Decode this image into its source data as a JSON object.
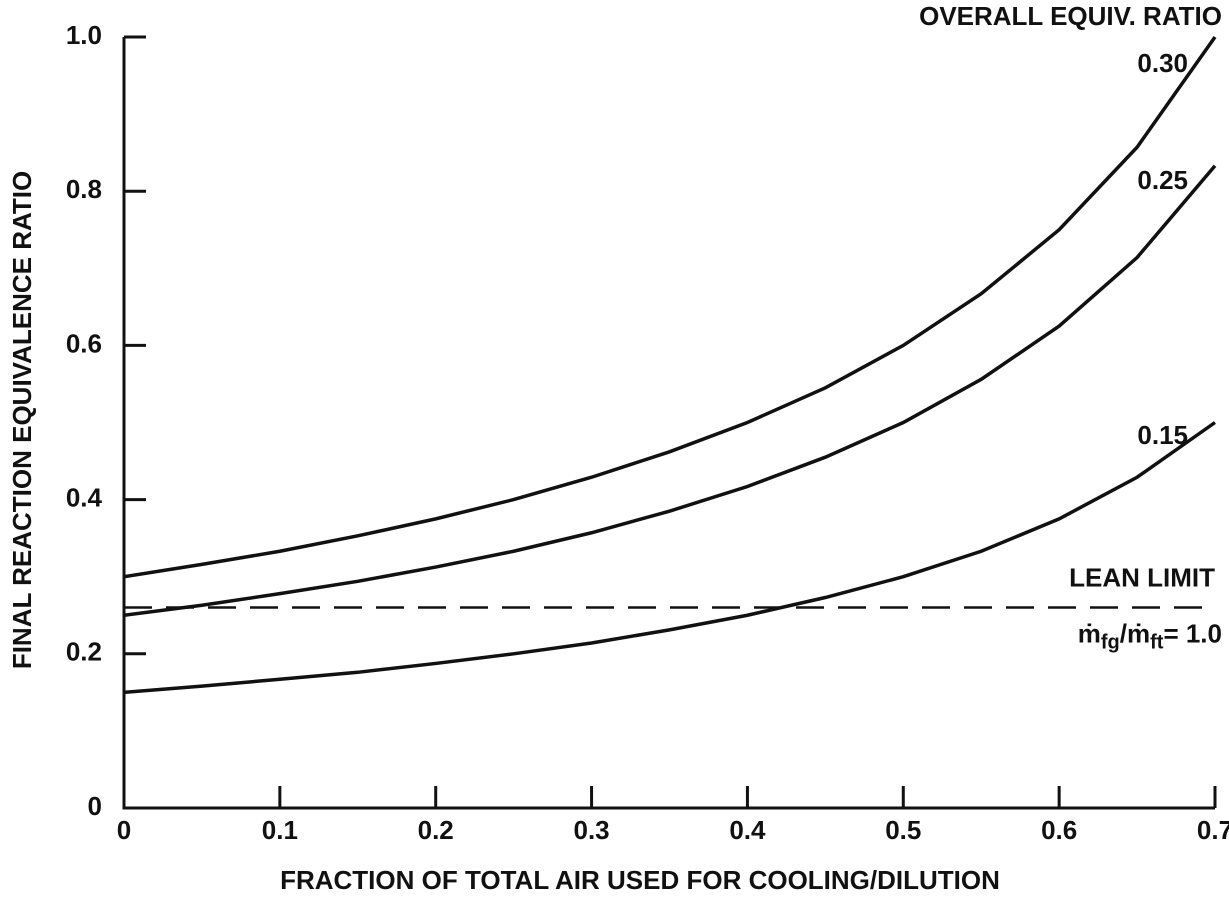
{
  "chart_data": {
    "type": "line",
    "xlabel": "FRACTION OF TOTAL AIR USED FOR COOLING/DILUTION",
    "ylabel": "FINAL REACTION EQUIVALENCE RATIO",
    "legend_title": "OVERALL EQUIV. RATIO",
    "color": "#111111",
    "x": [
      0,
      0.05,
      0.1,
      0.15,
      0.2,
      0.25,
      0.3,
      0.35,
      0.4,
      0.45,
      0.5,
      0.55,
      0.6,
      0.65,
      0.7
    ],
    "series": [
      {
        "name": "0.30",
        "color": "#111111",
        "values": [
          0.3,
          0.316,
          0.333,
          0.353,
          0.375,
          0.4,
          0.429,
          0.462,
          0.5,
          0.545,
          0.6,
          0.667,
          0.75,
          0.857,
          1.0
        ]
      },
      {
        "name": "0.25",
        "color": "#111111",
        "values": [
          0.25,
          0.263,
          0.278,
          0.294,
          0.3125,
          0.333,
          0.357,
          0.385,
          0.417,
          0.455,
          0.5,
          0.556,
          0.625,
          0.714,
          0.833
        ]
      },
      {
        "name": "0.15",
        "color": "#111111",
        "values": [
          0.15,
          0.158,
          0.167,
          0.176,
          0.1875,
          0.2,
          0.214,
          0.231,
          0.25,
          0.273,
          0.3,
          0.333,
          0.375,
          0.429,
          0.5
        ]
      }
    ],
    "lean_limit": {
      "value": 0.26,
      "label": "LEAN LIMIT",
      "annotation": [
        "ṁ",
        "fg",
        "/ṁ",
        "ft",
        "= 1.0"
      ]
    },
    "xlim": [
      0,
      0.7
    ],
    "ylim": [
      0,
      1
    ],
    "xticks": [
      0,
      0.1,
      0.2,
      0.3,
      0.4,
      0.5,
      0.6,
      0.7
    ],
    "yticks": [
      0,
      0.2,
      0.4,
      0.6,
      {
        "value": 0.8,
        "label": "0.8"
      },
      {
        "value": 1,
        "label": "1.0"
      }
    ],
    "grid": false
  }
}
